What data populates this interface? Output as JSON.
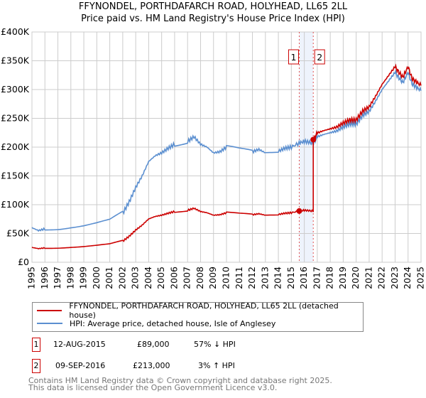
{
  "chart_data": {
    "type": "line",
    "title": "FFYNONDEL, PORTHDAFARCH ROAD, HOLYHEAD, LL65 2LL",
    "subtitle": "Price paid vs. HM Land Registry's House Price Index (HPI)",
    "xlim": [
      1995,
      2025
    ],
    "ylim": [
      0,
      400000
    ],
    "x_ticks": [
      "1995",
      "1996",
      "1997",
      "1998",
      "1999",
      "2000",
      "2001",
      "2002",
      "2003",
      "2004",
      "2005",
      "2006",
      "2007",
      "2008",
      "2009",
      "2010",
      "2011",
      "2012",
      "2013",
      "2014",
      "2015",
      "2016",
      "2017",
      "2018",
      "2019",
      "2020",
      "2021",
      "2022",
      "2023",
      "2024",
      "2025"
    ],
    "y_ticks": [
      "£0",
      "£50K",
      "£100K",
      "£150K",
      "£200K",
      "£250K",
      "£300K",
      "£350K",
      "£400K"
    ],
    "grid": true,
    "series": [
      {
        "name": "FFYNONDEL, PORTHDAFARCH ROAD, HOLYHEAD, LL65 2LL (detached house)",
        "color": "#cc0000"
      },
      {
        "name": "HPI: Average price, detached house, Isle of Anglesey",
        "color": "#5b8fd0",
        "x": [
          1995,
          1995.5,
          1996,
          1997,
          1998,
          1999,
          2000,
          2001,
          2002,
          2002.5,
          2003,
          2003.5,
          2004,
          2004.5,
          2005,
          2005.5,
          2006,
          2007,
          2007.5,
          2008,
          2008.5,
          2009,
          2009.5,
          2010,
          2011,
          2012,
          2012.5,
          2013,
          2014,
          2014.5,
          2015,
          2015.6,
          2016,
          2016.5,
          2016.7,
          2017,
          2017.5,
          2018,
          2018.5,
          2019,
          2019.5,
          2020,
          2020.5,
          2021,
          2021.5,
          2022,
          2022.5,
          2023,
          2023.3,
          2023.6,
          2024,
          2024.3,
          2024.6,
          2025
        ],
        "y": [
          60000,
          55000,
          58000,
          60000,
          63000,
          65000,
          68000,
          72000,
          85000,
          105000,
          130000,
          150000,
          175000,
          185000,
          190000,
          198000,
          205000,
          210000,
          218000,
          205000,
          200000,
          190000,
          192000,
          200000,
          195000,
          192000,
          196000,
          190000,
          193000,
          198000,
          200000,
          207000,
          210000,
          208000,
          207000,
          218000,
          222000,
          225000,
          228000,
          235000,
          240000,
          240000,
          255000,
          262000,
          280000,
          300000,
          315000,
          330000,
          320000,
          312000,
          330000,
          310000,
          305000,
          298000
        ]
      }
    ],
    "sales": [
      {
        "label": "1",
        "date": "12-AUG-2015",
        "x": 2015.61,
        "price": "£89,000",
        "value": 89000,
        "hpi": "57% ↓ HPI"
      },
      {
        "label": "2",
        "date": "09-SEP-2016",
        "x": 2016.69,
        "price": "£213,000",
        "value": 213000,
        "hpi": "3% ↑ HPI"
      }
    ],
    "pre_ratio": 0.43,
    "post_ratio": 1.03
  },
  "footer": [
    "Contains HM Land Registry data © Crown copyright and database right 2025.",
    "This data is licensed under the Open Government Licence v3.0."
  ]
}
